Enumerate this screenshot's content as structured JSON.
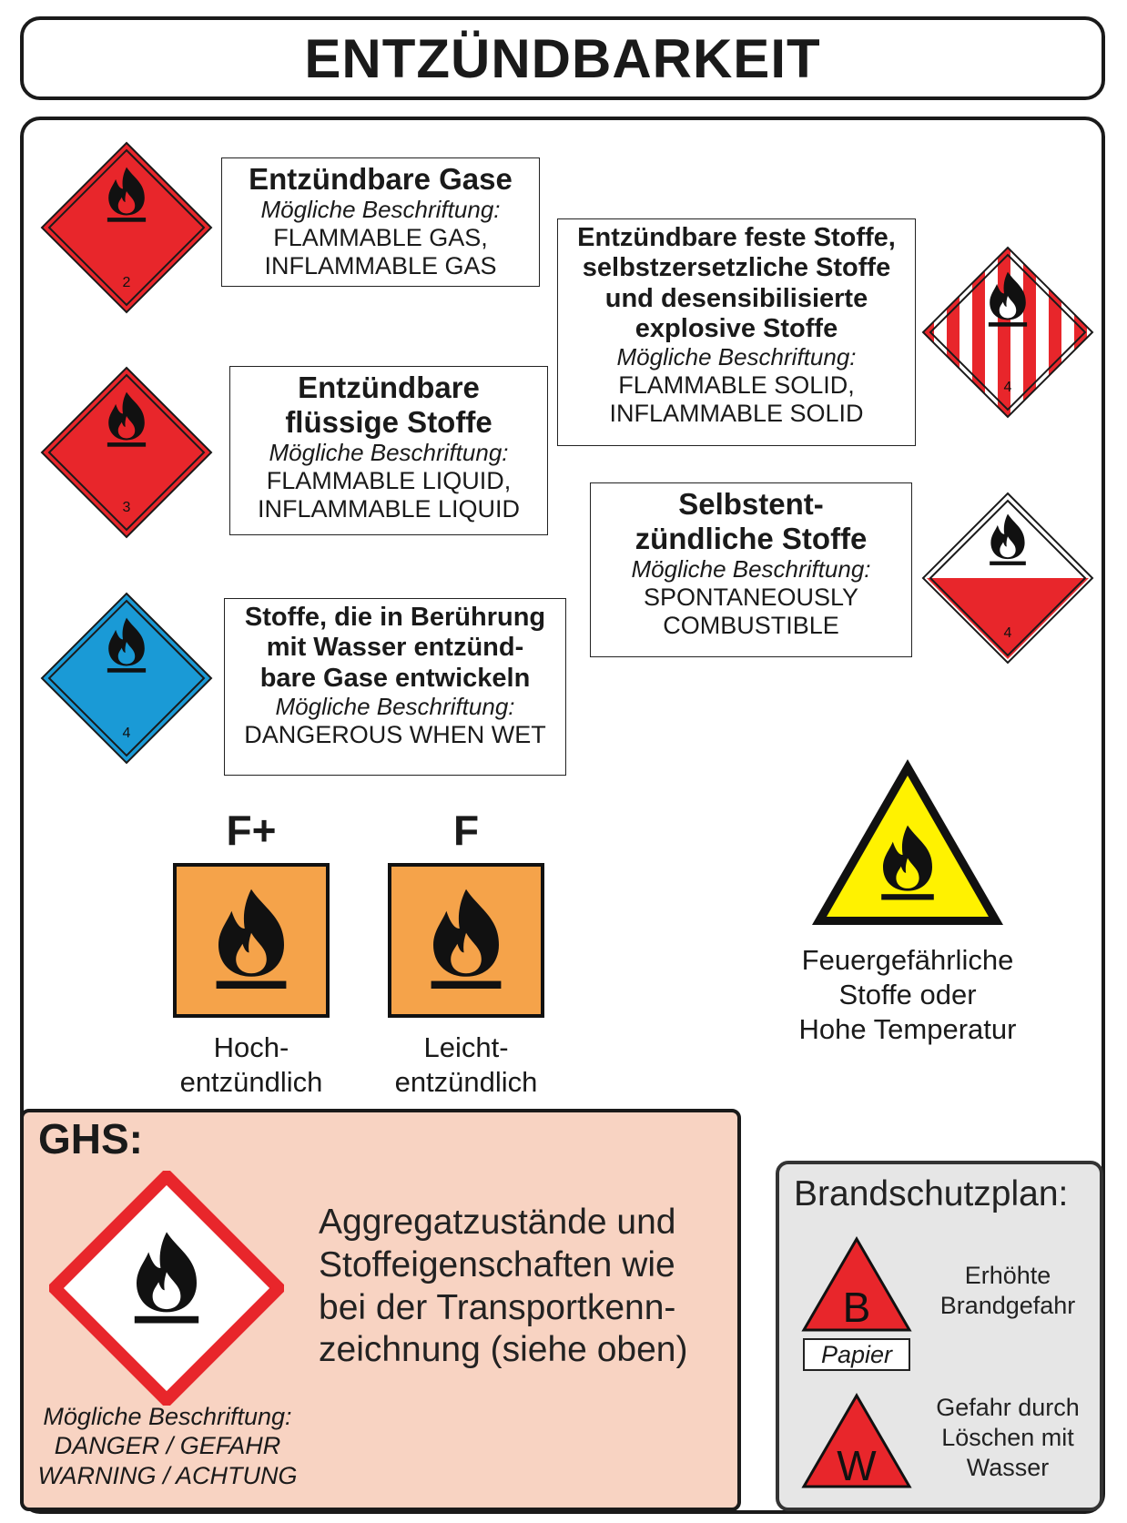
{
  "title": "ENTZÜNDBARKEIT",
  "labels": {
    "gas": {
      "heading": "Entzündbare Gase",
      "caption": "Mögliche Beschriftung:",
      "line1": "FLAMMABLE GAS,",
      "line2": "INFLAMMABLE GAS",
      "class_number": "2",
      "color": "#e8262b"
    },
    "liquid": {
      "heading1": "Entzündbare",
      "heading2": "flüssige Stoffe",
      "caption": "Mögliche Beschriftung:",
      "line1": "FLAMMABLE LIQUID,",
      "line2": "INFLAMMABLE LIQUID",
      "class_number": "3",
      "color": "#e8262b"
    },
    "wet": {
      "heading1": "Stoffe, die in Berührung",
      "heading2": "mit Wasser entzünd-",
      "heading3": "bare Gase entwickeln",
      "caption": "Mögliche Beschriftung:",
      "line1": "DANGEROUS WHEN WET",
      "class_number": "4",
      "color": "#1a9ad6"
    },
    "solid": {
      "heading1": "Entzündbare feste Stoffe,",
      "heading2": "selbstzersetzliche Stoffe",
      "heading3": "und desensibilisierte",
      "heading4": "explosive Stoffe",
      "caption": "Mögliche Beschriftung:",
      "line1": "FLAMMABLE SOLID,",
      "line2": "INFLAMMABLE SOLID",
      "class_number": "4",
      "color": "#e8262b"
    },
    "spontaneous": {
      "heading1": "Selbstent-",
      "heading2": "zündliche Stoffe",
      "caption": "Mögliche Beschriftung:",
      "line1": "SPONTANEOUSLY",
      "line2": "COMBUSTIBLE",
      "class_number": "4",
      "color": "#e8262b"
    }
  },
  "legacy": {
    "highly": {
      "symbol": "F+",
      "caption1": "Hoch-",
      "caption2": "entzündlich",
      "color": "#f5a34a"
    },
    "easily": {
      "symbol": "F",
      "caption1": "Leicht-",
      "caption2": "entzündlich",
      "color": "#f5a34a"
    }
  },
  "warning_sign": {
    "caption1": "Feuergefährliche",
    "caption2": "Stoffe oder",
    "caption3": "Hohe Temperatur",
    "color": "#fff200"
  },
  "ghs": {
    "title": "GHS:",
    "text1": "Aggregatzustände und",
    "text2": "Stoffeigenschaften wie",
    "text3": "bei der Transportkenn-",
    "text4": "zeichnung (siehe oben)",
    "caption": "Mögliche Beschriftung:",
    "line1": "DANGER / GEFAHR",
    "line2": "WARNING / ACHTUNG",
    "background": "#f8d3c2",
    "frame_color": "#e8262b"
  },
  "brandschutzplan": {
    "title": "Brandschutzplan:",
    "b_letter": "B",
    "b_tag": "Papier",
    "b_text1": "Erhöhte",
    "b_text2": "Brandgefahr",
    "w_letter": "W",
    "w_text1": "Gefahr durch",
    "w_text2": "Löschen mit",
    "w_text3": "Wasser",
    "color": "#e8262b"
  }
}
